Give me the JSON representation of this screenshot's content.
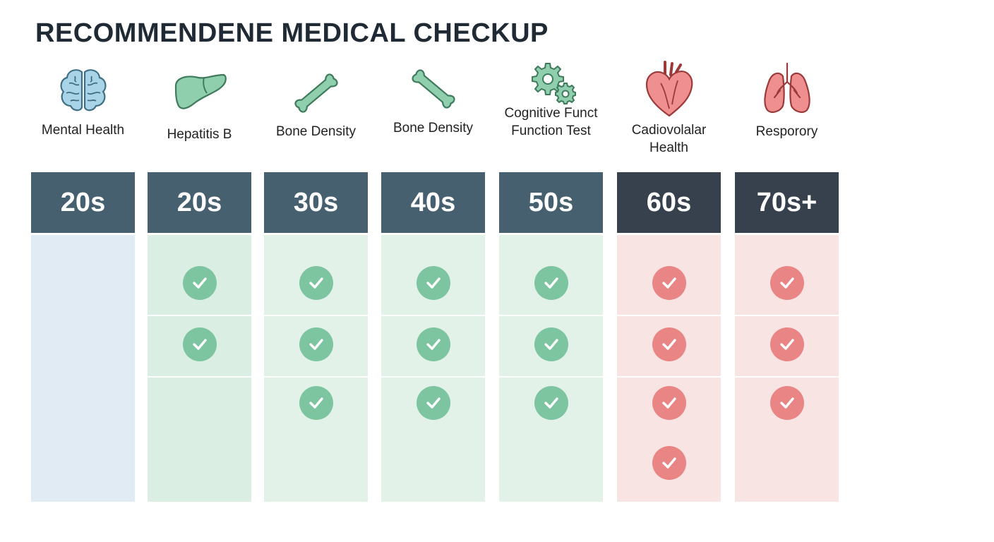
{
  "title": "RECOMMENDENE MEDICAL CHECKUP",
  "columns": [
    {
      "label": "Mental Health",
      "header": "20s",
      "icon": "brain-icon",
      "checks": []
    },
    {
      "label": "Hepatitis B",
      "header": "20s",
      "icon": "liver-icon",
      "checks": [
        1,
        2
      ]
    },
    {
      "label": "Bone Density",
      "header": "30s",
      "icon": "bone-icon",
      "checks": [
        1,
        2,
        3
      ]
    },
    {
      "label": "Bone Density",
      "header": "40s",
      "icon": "bone-icon",
      "checks": [
        1,
        2,
        3
      ]
    },
    {
      "label": "Cognitive Funct\nFunction Test",
      "header": "50s",
      "icon": "gears-icon",
      "checks": [
        1,
        2,
        3
      ]
    },
    {
      "label": "Cadiovolalar\nHealth",
      "header": "60s",
      "icon": "heart-icon",
      "checks": [
        1,
        2,
        3,
        4
      ]
    },
    {
      "label": "Resporory",
      "header": "70s+",
      "icon": "lungs-icon",
      "checks": [
        1,
        2,
        3
      ]
    }
  ],
  "colors": {
    "header_slate": "#46606f",
    "header_dark": "#36414d",
    "check_green": "#7dc4a1",
    "check_red": "#e98585",
    "body_blue": "#e1ebf4",
    "body_green": "#dbeee3",
    "body_red": "#f9e4e4"
  }
}
